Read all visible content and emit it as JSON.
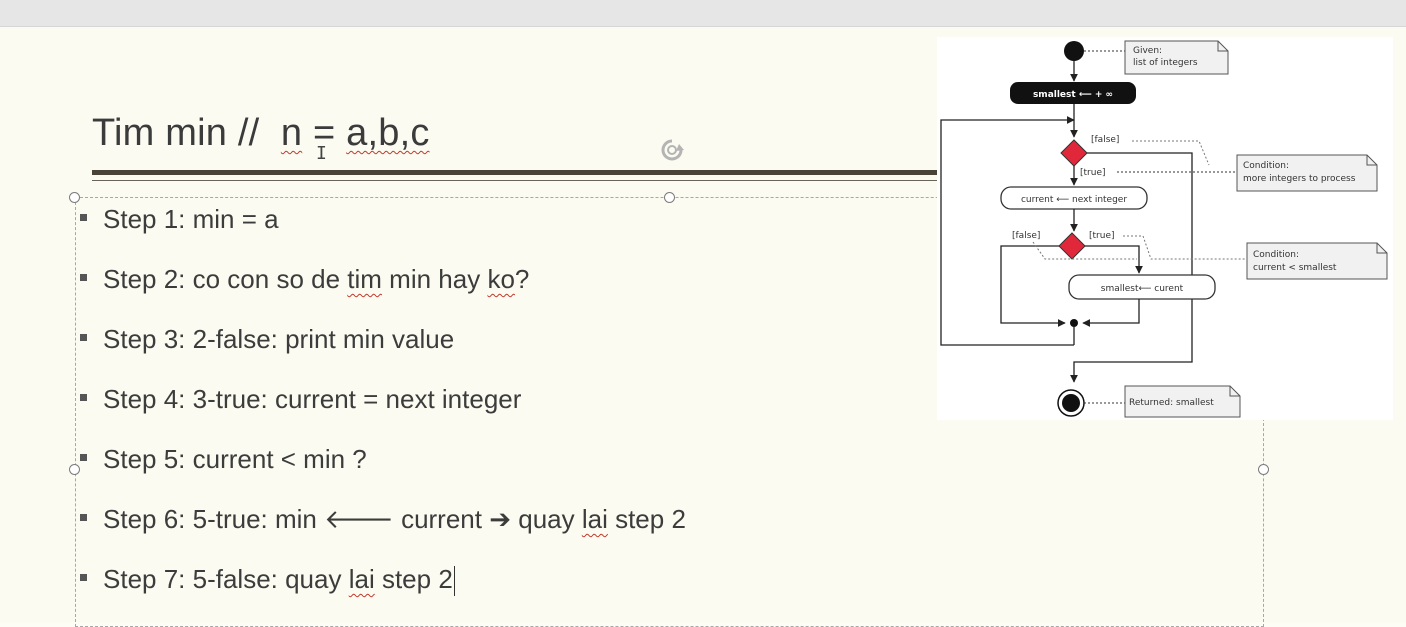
{
  "slide": {
    "title": {
      "prefix": "Tim min //  ",
      "n_char": "n",
      "eq": " = ",
      "vars": "a,b,c"
    },
    "steps": [
      {
        "parts": [
          {
            "t": "Step 1: min = a"
          }
        ]
      },
      {
        "parts": [
          {
            "t": "Step 2: co con so de "
          },
          {
            "t": "tim",
            "sq": true
          },
          {
            "t": " min hay "
          },
          {
            "t": "ko",
            "sq": true
          },
          {
            "t": "?"
          }
        ]
      },
      {
        "parts": [
          {
            "t": "Step 3: 2-false: print min value"
          }
        ]
      },
      {
        "parts": [
          {
            "t": "Step 4: 3-true: current = next integer"
          }
        ]
      },
      {
        "parts": [
          {
            "t": "Step 5: current < min ?"
          }
        ]
      },
      {
        "parts": [
          {
            "t": "Step 6: 5-true: min "
          },
          {
            "t": "🡐"
          },
          {
            "t": " current "
          },
          {
            "t": "➔"
          },
          {
            "t": " quay "
          },
          {
            "t": "lai",
            "sq": true
          },
          {
            "t": " step 2"
          }
        ]
      },
      {
        "parts": [
          {
            "t": "Step 7: 5-false: quay "
          },
          {
            "t": "lai",
            "sq": true
          },
          {
            "t": " step 2"
          }
        ]
      }
    ]
  },
  "diagram": {
    "note_given": [
      "Given:",
      "list of integers"
    ],
    "init_label": "smallest ⟵ + ∞",
    "false1": "[false]",
    "true1": "[true]",
    "note_cond1": [
      "Condition:",
      "more integers to process"
    ],
    "next_label": "current ⟵ next integer",
    "false2": "[false]",
    "true2": "[true]",
    "note_cond2": [
      "Condition:",
      "current < smallest"
    ],
    "assign_label": "smallest⟵   curent",
    "note_return": "Returned: smallest"
  },
  "colors": {
    "decision": "#e0283a",
    "title_rule": "#4a4438",
    "slide_bg": "#fbfbf1"
  }
}
